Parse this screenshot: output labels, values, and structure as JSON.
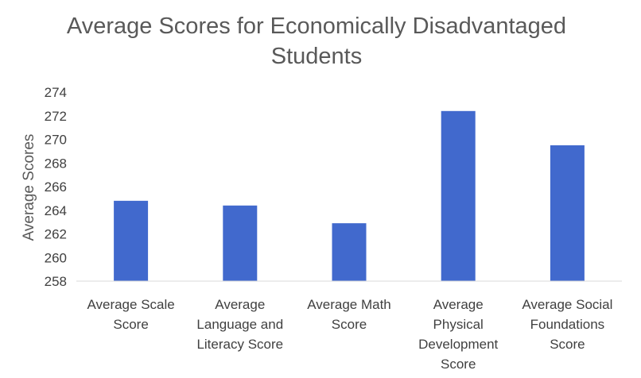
{
  "chart_data": {
    "type": "bar",
    "title_lines": [
      "Average Scores for Economically Disadvantaged",
      "Students"
    ],
    "ylabel": "Average Scores",
    "xlabel": "",
    "ylim": [
      258,
      274
    ],
    "ytick_step": 2,
    "yticks": [
      "258",
      "260",
      "262",
      "264",
      "266",
      "268",
      "270",
      "272",
      "274"
    ],
    "grid": false,
    "legend": "none",
    "bar_color": "#4169CD",
    "categories": [
      [
        "Average Scale",
        "Score"
      ],
      [
        "Average",
        "Language and",
        "Literacy Score"
      ],
      [
        "Average Math",
        "Score"
      ],
      [
        "Average",
        "Physical",
        "Development",
        "Score"
      ],
      [
        "Average Social",
        "Foundations",
        "Score"
      ]
    ],
    "values": [
      264.8,
      264.4,
      262.9,
      272.4,
      269.5
    ]
  }
}
